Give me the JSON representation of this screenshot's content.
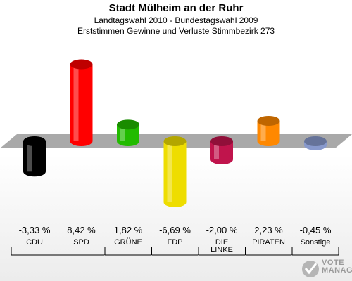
{
  "header": {
    "title": "Stadt Mülheim an der Ruhr",
    "subtitle": "Landtagswahl 2010 - Bundestagswahl 2009",
    "subtitle2": "Erststimmen Gewinne und Verluste Stimmbezirk 273"
  },
  "chart_data": {
    "type": "bar",
    "categories": [
      "CDU",
      "SPD",
      "GRÜNE",
      "FDP",
      "DIE LINKE",
      "PIRATEN",
      "Sonstige"
    ],
    "values": [
      -3.33,
      8.42,
      1.82,
      -6.69,
      -2.0,
      2.23,
      -0.45
    ],
    "labels": [
      "-3,33 %",
      "8,42 %",
      "1,82 %",
      "-6,69 %",
      "-2,00 %",
      "2,23 %",
      "-0,45 %"
    ],
    "colors": [
      "#000000",
      "#ff0000",
      "#22bb00",
      "#eedd00",
      "#c0144c",
      "#ff8800",
      "#8899cc"
    ],
    "ylim": [
      -7,
      9
    ]
  },
  "logo": {
    "line1": "VOTE",
    "line2": "MANAGER"
  }
}
